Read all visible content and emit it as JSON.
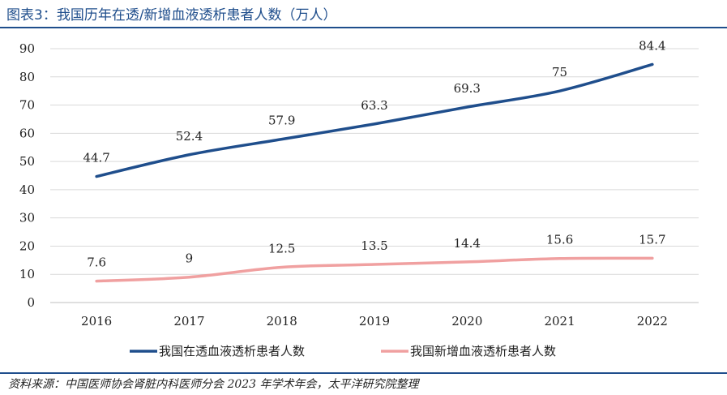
{
  "title": "图表3：我国历年在透/新增血液透析患者人数（万人）",
  "source": "资料来源：中国医师协会肾脏内科医师分会 2023 年学术年会，太平洋研究院整理",
  "chart_data": {
    "type": "line",
    "title": "我国历年在透/新增血液透析患者人数（万人）",
    "categories": [
      "2016",
      "2017",
      "2018",
      "2019",
      "2020",
      "2021",
      "2022"
    ],
    "ylim": [
      0,
      90
    ],
    "yticks": [
      0,
      10,
      20,
      30,
      40,
      50,
      60,
      70,
      80,
      90
    ],
    "grid": true,
    "legend_position": "bottom",
    "series": [
      {
        "name": "我国在透血液透析患者人数",
        "color": "#1f4e8c",
        "values": [
          44.7,
          52.4,
          57.9,
          63.3,
          69.3,
          75,
          84.4
        ],
        "labels": [
          "44.7",
          "52.4",
          "57.9",
          "63.3",
          "69.3",
          "75",
          "84.4"
        ]
      },
      {
        "name": "我国新增血液透析患者人数",
        "color": "#f0a0a0",
        "values": [
          7.6,
          9,
          12.5,
          13.5,
          14.4,
          15.6,
          15.7
        ],
        "labels": [
          "7.6",
          "9",
          "12.5",
          "13.5",
          "14.4",
          "15.6",
          "15.7"
        ]
      }
    ]
  }
}
